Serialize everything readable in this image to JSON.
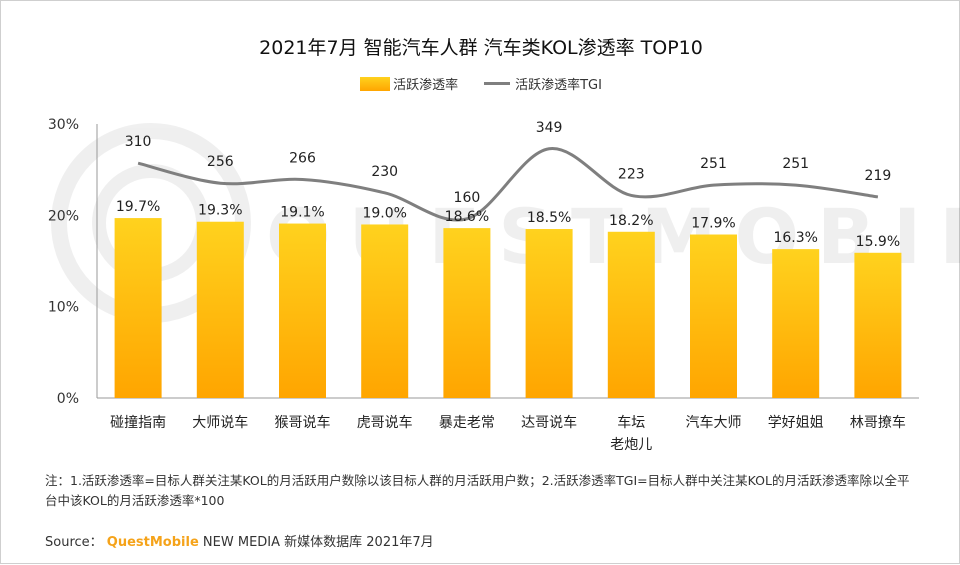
{
  "chart_data": {
    "type": "bar",
    "title": "2021年7月 智能汽车人群 汽车类KOL渗透率 TOP10",
    "categories": [
      "碰撞指南",
      "大师说车",
      "猴哥说车",
      "虎哥说车",
      "暴走老常",
      "达哥说车",
      "车坛\n老炮儿",
      "汽车大师",
      "学好姐姐",
      "林哥撩车"
    ],
    "series": [
      {
        "name": "活跃渗透率",
        "type": "bar",
        "values": [
          19.7,
          19.3,
          19.1,
          19.0,
          18.6,
          18.5,
          18.2,
          17.9,
          16.3,
          15.9
        ],
        "labels": [
          "19.7%",
          "19.3%",
          "19.1%",
          "19.0%",
          "18.6%",
          "18.5%",
          "18.2%",
          "17.9%",
          "16.3%",
          "15.9%"
        ],
        "color": "#ffb400"
      },
      {
        "name": "活跃渗透率TGI",
        "type": "line",
        "values": [
          310,
          256,
          266,
          230,
          160,
          349,
          223,
          251,
          251,
          219
        ],
        "labels": [
          "310",
          "256",
          "266",
          "230",
          "160",
          "349",
          "223",
          "251",
          "251",
          "219"
        ],
        "color": "#7f7f7f"
      }
    ],
    "y_ticks": [
      "0%",
      "10%",
      "20%",
      "30%"
    ],
    "ylim": [
      0,
      30
    ],
    "legend_position": "top-center",
    "grid": false
  },
  "watermark": "QUESTMOBILE",
  "note": "注：1.活跃渗透率=目标人群关注某KOL的月活跃用户数除以该目标人群的月活跃用户数；2.活跃渗透率TGI=目标人群中关注某KOL的月活跃渗透率除以全平台中该KOL的月活跃渗透率*100",
  "source": {
    "prefix": "Source：",
    "brand": "QuestMobile",
    "text": "NEW MEDIA 新媒体数据库 2021年7月"
  },
  "colors": {
    "bar_top": "#ffd21e",
    "bar_bottom": "#ffa500",
    "line": "#7f7f7f",
    "brand": "#f5a31a"
  }
}
